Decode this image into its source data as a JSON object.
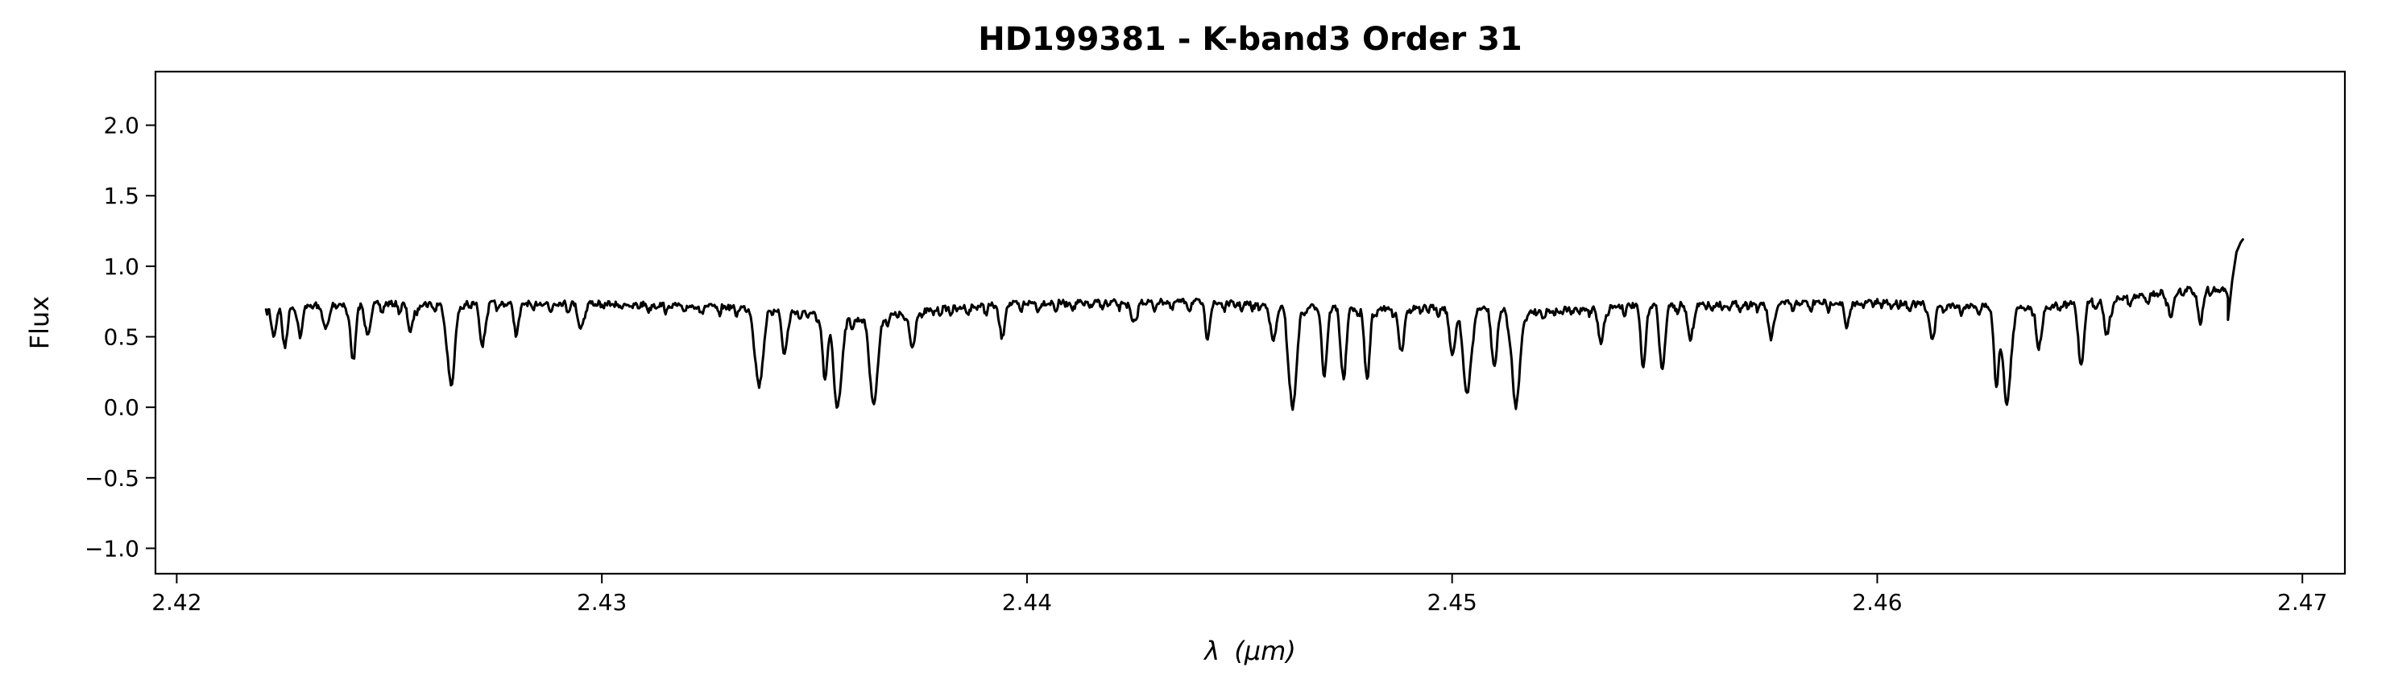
{
  "chart_data": {
    "type": "line",
    "title": "HD199381 - K-band3 Order 31",
    "xlabel_symbol": "λ",
    "xlabel_unit": "(μm)",
    "ylabel": "Flux",
    "xlim": [
      2.4195,
      2.471
    ],
    "ylim": [
      -1.18,
      2.38
    ],
    "xticks": [
      2.42,
      2.43,
      2.44,
      2.45,
      2.46,
      2.47
    ],
    "xtick_labels": [
      "2.42",
      "2.43",
      "2.44",
      "2.45",
      "2.46",
      "2.47"
    ],
    "yticks": [
      -1.0,
      -0.5,
      0.0,
      0.5,
      1.0,
      1.5,
      2.0
    ],
    "ytick_labels": [
      "−1.0",
      "−0.5",
      "0.0",
      "0.5",
      "1.0",
      "1.5",
      "2.0"
    ],
    "grid": false,
    "line_color": "#000000",
    "continuum": [
      [
        2.422,
        0.75
      ],
      [
        2.43,
        0.76
      ],
      [
        2.434,
        0.72
      ],
      [
        2.436,
        0.64
      ],
      [
        2.438,
        0.72
      ],
      [
        2.44,
        0.76
      ],
      [
        2.444,
        0.77
      ],
      [
        2.446,
        0.74
      ],
      [
        2.448,
        0.72
      ],
      [
        2.45,
        0.73
      ],
      [
        2.452,
        0.7
      ],
      [
        2.454,
        0.74
      ],
      [
        2.456,
        0.75
      ],
      [
        2.46,
        0.77
      ],
      [
        2.462,
        0.74
      ],
      [
        2.464,
        0.74
      ],
      [
        2.466,
        0.8
      ],
      [
        2.467,
        0.85
      ],
      [
        2.468,
        0.86
      ]
    ],
    "absorption_lines": [
      [
        2.42228,
        0.22
      ],
      [
        2.42255,
        0.27
      ],
      [
        2.4229,
        0.2
      ],
      [
        2.4235,
        0.18
      ],
      [
        2.42415,
        0.4
      ],
      [
        2.4245,
        0.2
      ],
      [
        2.4255,
        0.2
      ],
      [
        2.42645,
        0.55
      ],
      [
        2.4272,
        0.28
      ],
      [
        2.428,
        0.18
      ],
      [
        2.4295,
        0.18
      ],
      [
        2.4337,
        0.55
      ],
      [
        2.4343,
        0.3
      ],
      [
        2.43525,
        0.45
      ],
      [
        2.43555,
        0.62
      ],
      [
        2.4364,
        0.6
      ],
      [
        2.4373,
        0.25
      ],
      [
        2.4394,
        0.2
      ],
      [
        2.4425,
        0.15
      ],
      [
        2.44425,
        0.2
      ],
      [
        2.4458,
        0.25
      ],
      [
        2.44625,
        0.72
      ],
      [
        2.447,
        0.45
      ],
      [
        2.44745,
        0.5
      ],
      [
        2.448,
        0.5
      ],
      [
        2.4488,
        0.3
      ],
      [
        2.45,
        0.35
      ],
      [
        2.45035,
        0.62
      ],
      [
        2.451,
        0.4
      ],
      [
        2.4515,
        0.68
      ],
      [
        2.4535,
        0.25
      ],
      [
        2.4545,
        0.4
      ],
      [
        2.45495,
        0.45
      ],
      [
        2.4556,
        0.25
      ],
      [
        2.4575,
        0.25
      ],
      [
        2.4593,
        0.15
      ],
      [
        2.4613,
        0.25
      ],
      [
        2.4628,
        0.5
      ],
      [
        2.46305,
        0.69
      ],
      [
        2.4638,
        0.3
      ],
      [
        2.4648,
        0.45
      ],
      [
        2.4654,
        0.25
      ],
      [
        2.4669,
        0.18
      ],
      [
        2.4676,
        0.22
      ]
    ],
    "end_rise": [
      [
        2.46825,
        0.62
      ],
      [
        2.46835,
        0.9
      ],
      [
        2.46845,
        1.1
      ],
      [
        2.46855,
        1.17
      ],
      [
        2.4686,
        1.19
      ]
    ]
  }
}
